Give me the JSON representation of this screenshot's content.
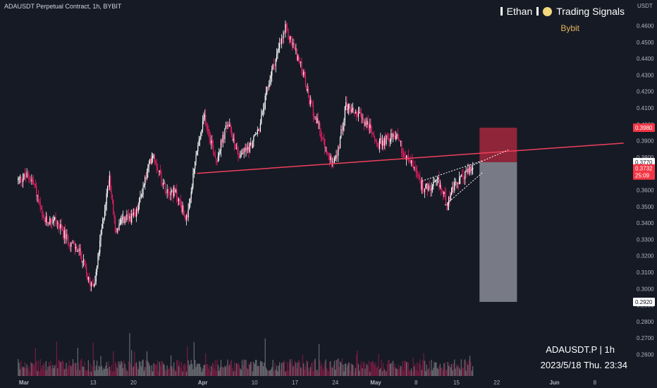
{
  "header": {
    "title": "ADAUSDT Perpetual Contract, 1h, BYBIT",
    "currency": "USDT"
  },
  "branding": {
    "author": "Ethan",
    "channel": "Trading Signals",
    "exchange": "Bybit"
  },
  "footer": {
    "symbol_interval": "ADAUSDT.P | 1h",
    "timestamp": "2023/5/18 Thu. 23:34"
  },
  "price_tags": {
    "stop": "0.3980",
    "current_top": "0.3770",
    "current": "0.3732",
    "countdown": "25:09",
    "target": "0.2920"
  },
  "colors": {
    "background": "#161a25",
    "candle_up": "#ffffff",
    "candle_down": "#e91e63",
    "trendline": "#f0405a",
    "stop_zone": "#a3283d",
    "target_zone": "#8a8d96",
    "tag_red": "#f23645",
    "axis_text": "#b2b5be"
  },
  "chart_data": {
    "type": "candlestick",
    "symbol": "ADAUSDT",
    "interval": "1h",
    "y_axis": {
      "ticks": [
        "0.4600",
        "0.4500",
        "0.4400",
        "0.4300",
        "0.4200",
        "0.4100",
        "0.4000",
        "0.3900",
        "0.3800",
        "0.3700",
        "0.3600",
        "0.3500",
        "0.3400",
        "0.3300",
        "0.3200",
        "0.3100",
        "0.3000",
        "0.2900",
        "0.2800",
        "0.2700",
        "0.2600"
      ],
      "range": [
        0.255,
        0.466
      ]
    },
    "x_axis": {
      "ticks": [
        "Mar",
        "13",
        "20",
        "Apr",
        "10",
        "17",
        "24",
        "May",
        "8",
        "15",
        "22",
        "Jun",
        "8"
      ],
      "tick_days": [
        0,
        12,
        19,
        31,
        40,
        47,
        54,
        61,
        68,
        75,
        82,
        92,
        99
      ]
    },
    "price_path": [
      {
        "d": -1.0,
        "p": 0.366
      },
      {
        "d": 1.0,
        "p": 0.369
      },
      {
        "d": 2.0,
        "p": 0.363
      },
      {
        "d": 3.5,
        "p": 0.341
      },
      {
        "d": 5.5,
        "p": 0.342
      },
      {
        "d": 7.5,
        "p": 0.331
      },
      {
        "d": 10.0,
        "p": 0.321
      },
      {
        "d": 11.5,
        "p": 0.303
      },
      {
        "d": 12.5,
        "p": 0.305
      },
      {
        "d": 14.0,
        "p": 0.345
      },
      {
        "d": 15.0,
        "p": 0.369
      },
      {
        "d": 16.0,
        "p": 0.335
      },
      {
        "d": 17.5,
        "p": 0.342
      },
      {
        "d": 19.5,
        "p": 0.344
      },
      {
        "d": 21.0,
        "p": 0.364
      },
      {
        "d": 22.5,
        "p": 0.383
      },
      {
        "d": 24.5,
        "p": 0.362
      },
      {
        "d": 26.5,
        "p": 0.358
      },
      {
        "d": 28.5,
        "p": 0.341
      },
      {
        "d": 30.0,
        "p": 0.381
      },
      {
        "d": 31.5,
        "p": 0.405
      },
      {
        "d": 33.5,
        "p": 0.378
      },
      {
        "d": 35.5,
        "p": 0.401
      },
      {
        "d": 37.5,
        "p": 0.381
      },
      {
        "d": 39.5,
        "p": 0.387
      },
      {
        "d": 41.0,
        "p": 0.398
      },
      {
        "d": 43.0,
        "p": 0.431
      },
      {
        "d": 45.5,
        "p": 0.458
      },
      {
        "d": 47.0,
        "p": 0.447
      },
      {
        "d": 48.5,
        "p": 0.432
      },
      {
        "d": 49.5,
        "p": 0.416
      },
      {
        "d": 51.5,
        "p": 0.396
      },
      {
        "d": 53.0,
        "p": 0.379
      },
      {
        "d": 54.5,
        "p": 0.38
      },
      {
        "d": 56.0,
        "p": 0.412
      },
      {
        "d": 58.0,
        "p": 0.406
      },
      {
        "d": 60.0,
        "p": 0.399
      },
      {
        "d": 61.5,
        "p": 0.387
      },
      {
        "d": 63.0,
        "p": 0.391
      },
      {
        "d": 65.0,
        "p": 0.394
      },
      {
        "d": 66.0,
        "p": 0.381
      },
      {
        "d": 67.5,
        "p": 0.376
      },
      {
        "d": 69.0,
        "p": 0.363
      },
      {
        "d": 70.5,
        "p": 0.36
      },
      {
        "d": 72.0,
        "p": 0.365
      },
      {
        "d": 73.5,
        "p": 0.353
      },
      {
        "d": 75.0,
        "p": 0.363
      },
      {
        "d": 77.0,
        "p": 0.371
      },
      {
        "d": 78.0,
        "p": 0.3732
      }
    ],
    "annotations": {
      "support_line": {
        "start": {
          "d": 30.0,
          "p": 0.3702
        },
        "end": {
          "d": 104.0,
          "p": 0.3886
        }
      },
      "wedge_upper": {
        "start": {
          "d": 69.0,
          "p": 0.3655
        },
        "end": {
          "d": 79.5,
          "p": 0.3779
        }
      },
      "wedge_lower": {
        "start": {
          "d": 73.0,
          "p": 0.3508
        },
        "end": {
          "d": 79.5,
          "p": 0.3706
        }
      },
      "projection": {
        "start": {
          "d": 78.0,
          "p": 0.3754
        },
        "end": {
          "d": 84.0,
          "p": 0.3845
        }
      },
      "position": {
        "entry": 0.377,
        "stop": 0.398,
        "target": 0.292,
        "from_day": 79.0,
        "to_day": 85.5
      }
    }
  }
}
